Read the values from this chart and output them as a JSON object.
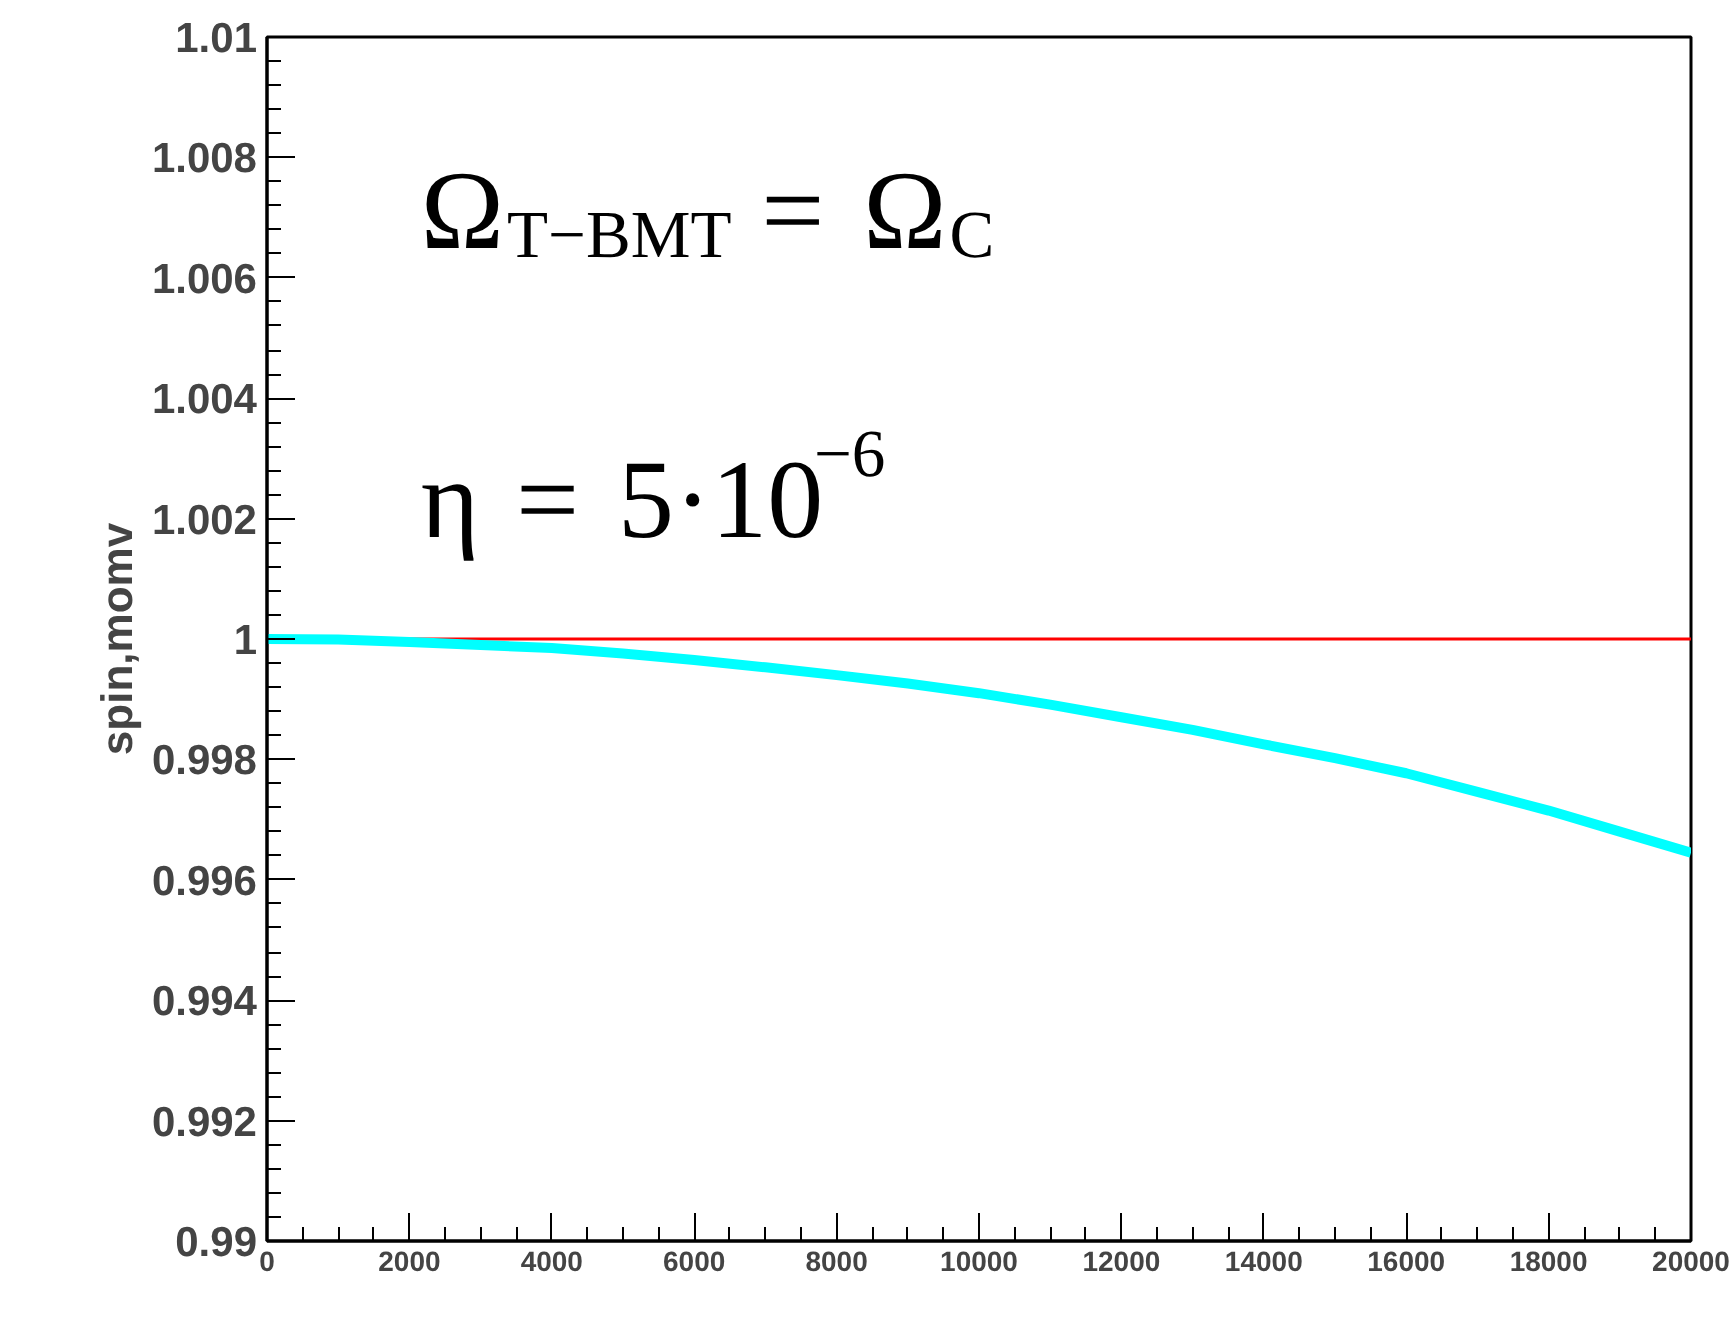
{
  "chart_data": {
    "type": "line",
    "ylabel": "spin,momv",
    "x": [
      0,
      1000,
      2000,
      3000,
      4000,
      5000,
      6000,
      7000,
      8000,
      9000,
      10000,
      11000,
      12000,
      13000,
      14000,
      15000,
      16000,
      17000,
      18000,
      19000,
      20000
    ],
    "series": [
      {
        "color": "#00ffff",
        "values": [
          1,
          0.99999,
          0.99995,
          0.9999,
          0.99985,
          0.99976,
          0.99965,
          0.99953,
          0.9994,
          0.99926,
          0.9991,
          0.99891,
          0.9987,
          0.99849,
          0.99825,
          0.99802,
          0.99777,
          0.99746,
          0.99715,
          0.9968,
          0.99645
        ]
      }
    ],
    "ref_lines": [
      {
        "axis": "y",
        "value": 1,
        "color": "#ff0000"
      }
    ],
    "annotations": [
      "Ω⃗$_{T−BMT}$ = Ω⃗$_{C}$",
      "η = 5·10$^{−6}$"
    ],
    "xlim": [
      0,
      20000
    ],
    "ylim": [
      0.99,
      1.01
    ],
    "xticks": [
      0,
      2000,
      4000,
      6000,
      8000,
      10000,
      12000,
      14000,
      16000,
      18000,
      20000
    ],
    "yticks": [
      0.99,
      0.992,
      0.994,
      0.996,
      0.998,
      1,
      1.002,
      1.004,
      1.006,
      1.008,
      1.01
    ],
    "grid": false,
    "marker": "none",
    "line_style": "solid"
  }
}
